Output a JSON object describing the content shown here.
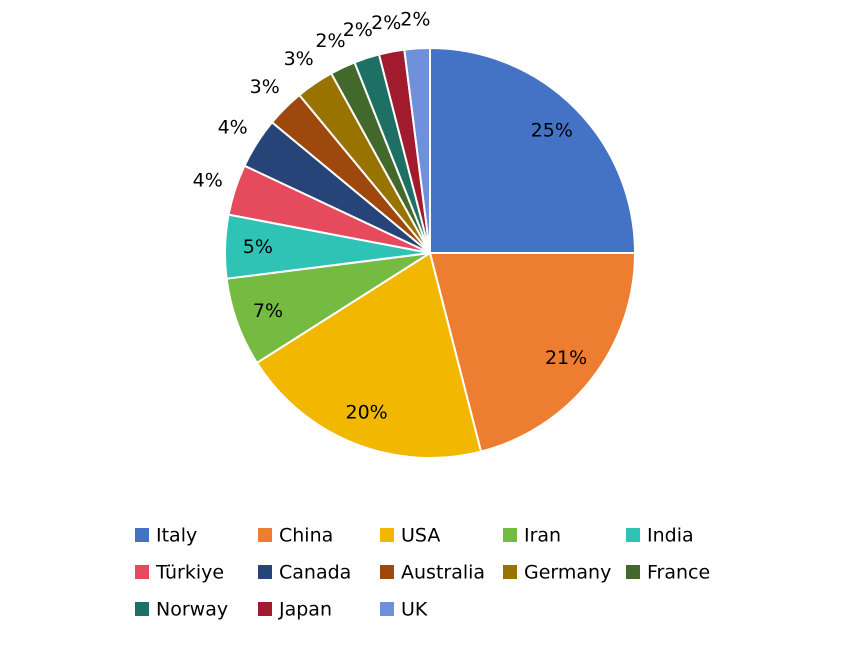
{
  "chart_data": {
    "type": "pie",
    "categories": [
      "Italy",
      "China",
      "USA",
      "Iran",
      "India",
      "Türkiye",
      "Canada",
      "Australia",
      "Germany",
      "France",
      "Norway",
      "Japan",
      "UK"
    ],
    "values": [
      25,
      21,
      20,
      7,
      5,
      4,
      4,
      3,
      3,
      2,
      2,
      2,
      2
    ],
    "value_labels": [
      "25%",
      "21%",
      "20%",
      "7%",
      "5%",
      "4%",
      "4%",
      "3%",
      "3%",
      "2%",
      "2%",
      "2%",
      "2%"
    ],
    "colors": [
      "#4472c4",
      "#ed7d31",
      "#f2b700",
      "#75bb42",
      "#2fc3b6",
      "#e54a5d",
      "#264478",
      "#9e480e",
      "#997300",
      "#43682b",
      "#1e7065",
      "#a11a2e",
      "#6f91dc"
    ],
    "legend": "bottom"
  }
}
